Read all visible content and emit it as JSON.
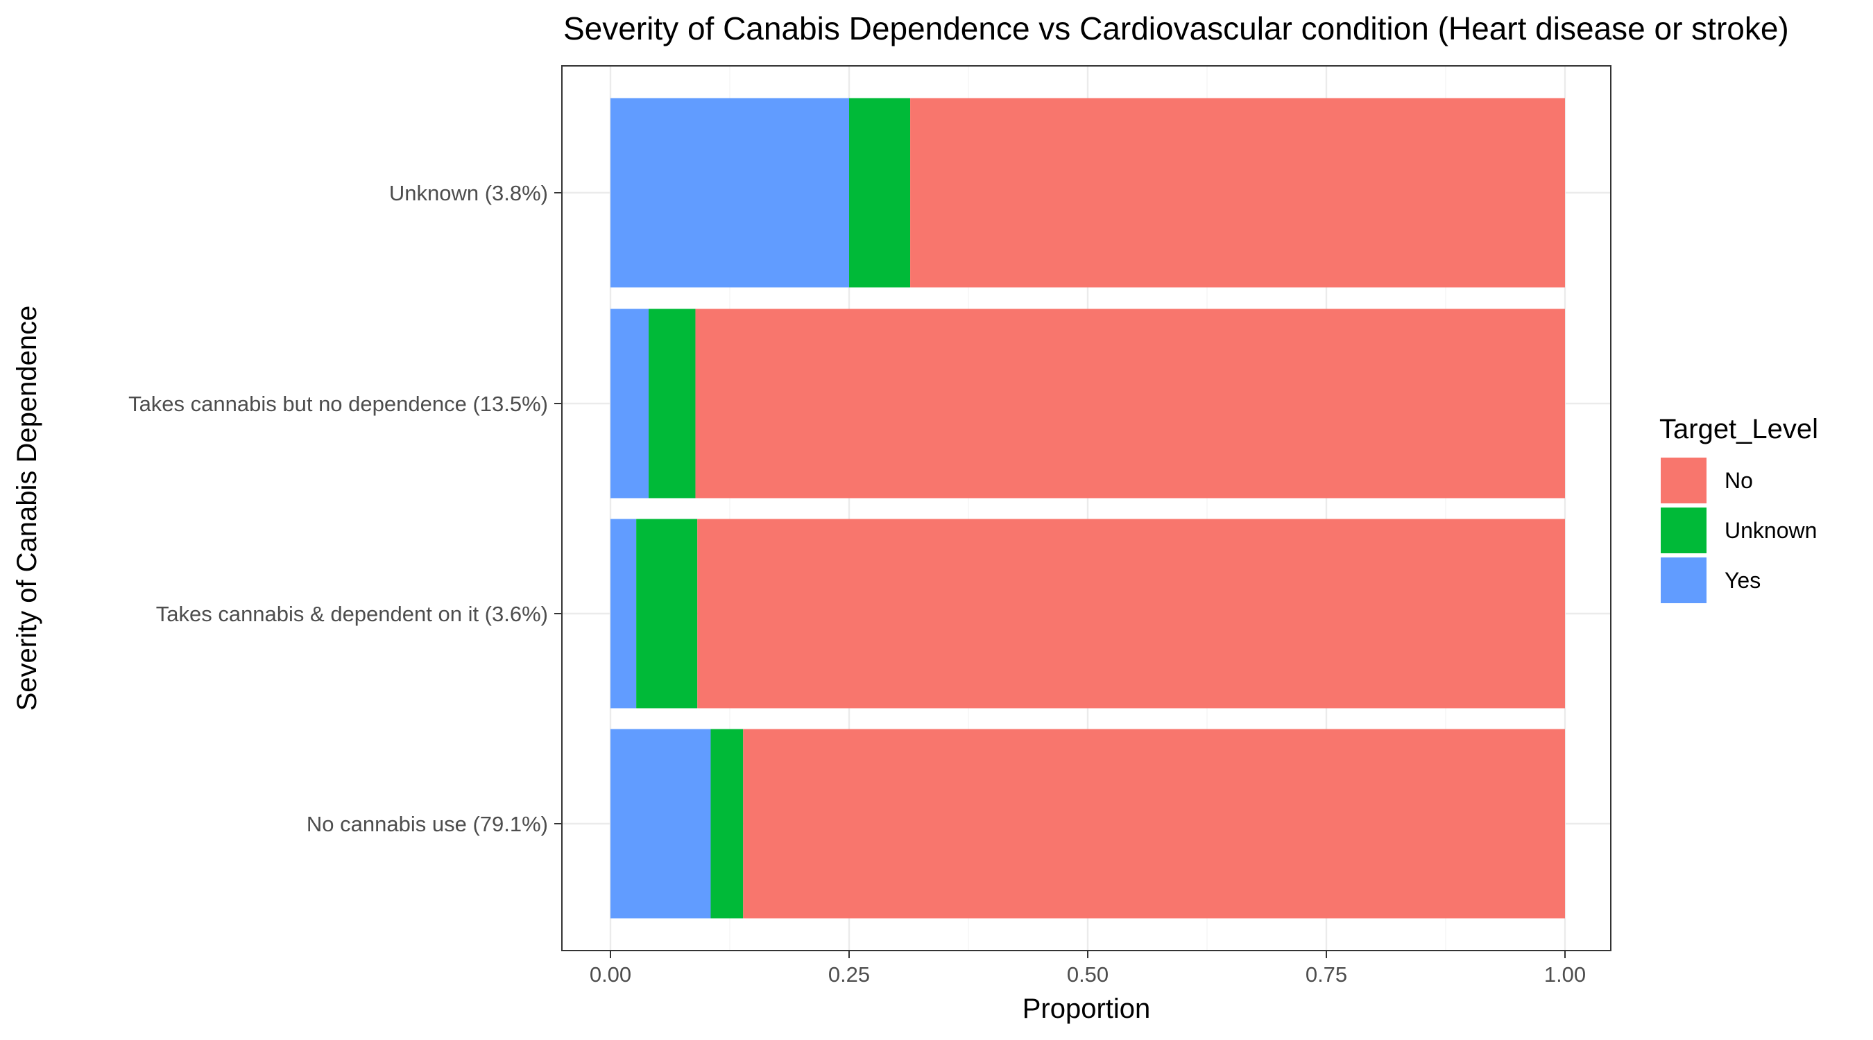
{
  "chart_data": {
    "type": "bar",
    "orientation": "horizontal",
    "stacked": true,
    "title": "Severity of Canabis Dependence vs Cardiovascular condition (Heart disease or stroke)",
    "xlabel": "Proportion",
    "ylabel": "Severity of Canabis Dependence",
    "xlim": [
      0,
      1
    ],
    "x_ticks": [
      "0.00",
      "0.25",
      "0.50",
      "0.75",
      "1.00"
    ],
    "grid": true,
    "categories": [
      "No cannabis use (79.1%)",
      "Takes cannabis & dependent on it (3.6%)",
      "Takes cannabis but no dependence (13.5%)",
      "Unknown (3.8%)"
    ],
    "series": [
      {
        "name": "Yes",
        "color": "#619CFF",
        "values": [
          0.105,
          0.027,
          0.04,
          0.25
        ]
      },
      {
        "name": "Unknown",
        "color": "#00BA38",
        "values": [
          0.034,
          0.064,
          0.049,
          0.064
        ]
      },
      {
        "name": "No",
        "color": "#F8766D",
        "values": [
          0.861,
          0.909,
          0.911,
          0.686
        ]
      }
    ],
    "legend": {
      "title": "Target_Level",
      "position": "right",
      "order": [
        "No",
        "Unknown",
        "Yes"
      ]
    }
  }
}
